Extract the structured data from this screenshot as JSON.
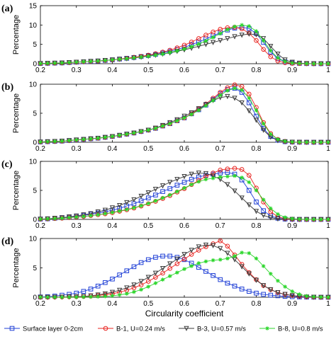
{
  "chart_data": [
    {
      "type": "line",
      "panel_label": "(a)",
      "ylabel": "Percentage",
      "xlabel": "",
      "xlim": [
        0.2,
        1.0
      ],
      "ylim": [
        0,
        15
      ],
      "xticks": [
        "0.2",
        "0.3",
        "0.4",
        "0.5",
        "0.6",
        "0.7",
        "0.8",
        "0.9",
        "1"
      ],
      "yticks": [
        "0",
        "5",
        "10",
        "15"
      ],
      "grid": false,
      "x": [
        0.2,
        0.22,
        0.24,
        0.26,
        0.28,
        0.3,
        0.32,
        0.34,
        0.36,
        0.38,
        0.4,
        0.42,
        0.44,
        0.46,
        0.48,
        0.5,
        0.52,
        0.54,
        0.56,
        0.58,
        0.6,
        0.62,
        0.64,
        0.66,
        0.68,
        0.7,
        0.72,
        0.74,
        0.76,
        0.78,
        0.8,
        0.82,
        0.84,
        0.86,
        0.88,
        0.9,
        0.92,
        0.94,
        0.96,
        0.98,
        1.0
      ],
      "series": [
        {
          "name": "Surface layer 0-2cm",
          "values": [
            0.05,
            0.1,
            0.15,
            0.2,
            0.3,
            0.4,
            0.5,
            0.6,
            0.7,
            0.85,
            1.0,
            1.2,
            1.4,
            1.6,
            1.85,
            2.1,
            2.4,
            2.8,
            3.2,
            3.7,
            4.2,
            4.9,
            5.6,
            6.4,
            7.2,
            8.0,
            8.7,
            9.2,
            9.4,
            9.1,
            7.8,
            5.5,
            3.0,
            1.3,
            0.5,
            0.2,
            0.08,
            0.03,
            0.01,
            0.0,
            0.0
          ]
        },
        {
          "name": "B-1, U=0.24 m/s",
          "values": [
            0.05,
            0.1,
            0.15,
            0.2,
            0.3,
            0.4,
            0.5,
            0.6,
            0.7,
            0.85,
            1.0,
            1.2,
            1.4,
            1.65,
            1.9,
            2.2,
            2.6,
            3.0,
            3.5,
            4.1,
            4.8,
            5.6,
            6.5,
            7.4,
            8.2,
            8.9,
            9.3,
            9.4,
            9.0,
            7.9,
            6.0,
            3.7,
            1.8,
            0.7,
            0.25,
            0.08,
            0.03,
            0.01,
            0.0,
            0.0,
            0.0
          ]
        },
        {
          "name": "B-3, U=0.57 m/s",
          "values": [
            0.05,
            0.1,
            0.15,
            0.2,
            0.3,
            0.4,
            0.5,
            0.6,
            0.7,
            0.85,
            1.0,
            1.15,
            1.3,
            1.5,
            1.7,
            1.95,
            2.2,
            2.5,
            2.8,
            3.2,
            3.6,
            4.0,
            4.5,
            5.0,
            5.5,
            6.0,
            6.5,
            7.0,
            7.4,
            7.7,
            7.5,
            6.5,
            4.5,
            2.5,
            1.0,
            0.4,
            0.15,
            0.05,
            0.02,
            0.0,
            0.0
          ]
        },
        {
          "name": "B-8, U=0.8 m/s",
          "values": [
            0.05,
            0.1,
            0.15,
            0.2,
            0.3,
            0.4,
            0.5,
            0.6,
            0.7,
            0.85,
            1.0,
            1.15,
            1.3,
            1.5,
            1.7,
            1.9,
            2.2,
            2.5,
            2.9,
            3.3,
            3.8,
            4.4,
            5.1,
            5.9,
            6.8,
            7.8,
            8.8,
            9.6,
            10.0,
            9.7,
            8.4,
            6.0,
            3.4,
            1.5,
            0.55,
            0.18,
            0.06,
            0.02,
            0.0,
            0.0,
            0.0
          ]
        }
      ]
    },
    {
      "type": "line",
      "panel_label": "(b)",
      "ylabel": "Percentage",
      "xlabel": "",
      "xlim": [
        0.2,
        1.0
      ],
      "ylim": [
        0,
        10
      ],
      "xticks": [
        "0.2",
        "0.3",
        "0.4",
        "0.5",
        "0.6",
        "0.7",
        "0.8",
        "0.9",
        "1"
      ],
      "yticks": [
        "0",
        "5",
        "10"
      ],
      "grid": false,
      "x": [
        0.2,
        0.22,
        0.24,
        0.26,
        0.28,
        0.3,
        0.32,
        0.34,
        0.36,
        0.38,
        0.4,
        0.42,
        0.44,
        0.46,
        0.48,
        0.5,
        0.52,
        0.54,
        0.56,
        0.58,
        0.6,
        0.62,
        0.64,
        0.66,
        0.68,
        0.7,
        0.72,
        0.74,
        0.76,
        0.78,
        0.8,
        0.82,
        0.84,
        0.86,
        0.88,
        0.9,
        0.92,
        0.94,
        0.96,
        0.98,
        1.0
      ],
      "series": [
        {
          "name": "Surface layer 0-2cm",
          "values": [
            0.05,
            0.1,
            0.15,
            0.2,
            0.3,
            0.4,
            0.5,
            0.6,
            0.7,
            0.85,
            1.0,
            1.2,
            1.4,
            1.6,
            1.85,
            2.1,
            2.4,
            2.8,
            3.2,
            3.7,
            4.2,
            4.9,
            5.6,
            6.4,
            7.4,
            8.4,
            9.1,
            9.3,
            8.6,
            6.8,
            4.5,
            2.4,
            1.0,
            0.35,
            0.1,
            0.03,
            0.01,
            0.0,
            0.0,
            0.0,
            0.0
          ]
        },
        {
          "name": "B-1, U=0.24 m/s",
          "values": [
            0.05,
            0.1,
            0.15,
            0.2,
            0.3,
            0.4,
            0.5,
            0.6,
            0.7,
            0.85,
            1.0,
            1.2,
            1.4,
            1.6,
            1.85,
            2.1,
            2.4,
            2.8,
            3.2,
            3.7,
            4.2,
            4.9,
            5.7,
            6.6,
            7.6,
            8.6,
            9.4,
            9.9,
            9.6,
            8.3,
            6.0,
            3.4,
            1.5,
            0.5,
            0.15,
            0.04,
            0.01,
            0.0,
            0.0,
            0.0,
            0.0
          ]
        },
        {
          "name": "B-3, U=0.57 m/s",
          "values": [
            0.05,
            0.1,
            0.15,
            0.2,
            0.3,
            0.4,
            0.5,
            0.6,
            0.7,
            0.85,
            1.0,
            1.2,
            1.4,
            1.6,
            1.85,
            2.1,
            2.45,
            2.9,
            3.4,
            3.9,
            4.5,
            5.1,
            5.8,
            6.5,
            7.2,
            7.7,
            7.9,
            7.6,
            6.8,
            5.4,
            3.8,
            2.1,
            0.9,
            0.3,
            0.1,
            0.03,
            0.01,
            0.0,
            0.0,
            0.0,
            0.0
          ]
        },
        {
          "name": "B-8, U=0.8 m/s",
          "values": [
            0.05,
            0.1,
            0.15,
            0.2,
            0.3,
            0.4,
            0.5,
            0.6,
            0.7,
            0.85,
            1.0,
            1.2,
            1.4,
            1.6,
            1.85,
            2.1,
            2.4,
            2.8,
            3.2,
            3.7,
            4.2,
            4.8,
            5.5,
            6.3,
            7.2,
            8.1,
            8.9,
            9.3,
            9.0,
            7.6,
            5.5,
            3.2,
            1.4,
            0.5,
            0.15,
            0.04,
            0.01,
            0.0,
            0.0,
            0.0,
            0.0
          ]
        }
      ]
    },
    {
      "type": "line",
      "panel_label": "(c)",
      "ylabel": "Percentage",
      "xlabel": "",
      "xlim": [
        0.2,
        1.0
      ],
      "ylim": [
        0,
        10
      ],
      "xticks": [
        "0.2",
        "0.3",
        "0.4",
        "0.5",
        "0.6",
        "0.7",
        "0.8",
        "0.9",
        "1"
      ],
      "yticks": [
        "0",
        "5",
        "10"
      ],
      "grid": false,
      "x": [
        0.2,
        0.22,
        0.24,
        0.26,
        0.28,
        0.3,
        0.32,
        0.34,
        0.36,
        0.38,
        0.4,
        0.42,
        0.44,
        0.46,
        0.48,
        0.5,
        0.52,
        0.54,
        0.56,
        0.58,
        0.6,
        0.62,
        0.64,
        0.66,
        0.68,
        0.7,
        0.72,
        0.74,
        0.76,
        0.78,
        0.8,
        0.82,
        0.84,
        0.86,
        0.88,
        0.9,
        0.92,
        0.94,
        0.96,
        0.98,
        1.0
      ],
      "series": [
        {
          "name": "Surface layer 0-2cm",
          "values": [
            0.05,
            0.1,
            0.2,
            0.3,
            0.4,
            0.55,
            0.7,
            0.9,
            1.1,
            1.3,
            1.6,
            1.9,
            2.3,
            2.7,
            3.2,
            3.7,
            4.2,
            4.8,
            5.3,
            5.9,
            6.4,
            6.9,
            7.3,
            7.6,
            7.8,
            8.0,
            8.1,
            7.8,
            6.8,
            5.0,
            3.0,
            1.5,
            0.6,
            0.2,
            0.06,
            0.02,
            0.0,
            0.0,
            0.0,
            0.0,
            0.0
          ]
        },
        {
          "name": "B-1, U=0.24 m/s",
          "values": [
            0.05,
            0.1,
            0.15,
            0.2,
            0.3,
            0.4,
            0.5,
            0.65,
            0.8,
            0.95,
            1.15,
            1.4,
            1.65,
            1.95,
            2.3,
            2.7,
            3.1,
            3.6,
            4.1,
            4.7,
            5.3,
            6.0,
            6.7,
            7.4,
            8.0,
            8.5,
            8.7,
            8.8,
            8.6,
            7.6,
            5.4,
            3.0,
            1.3,
            0.45,
            0.13,
            0.04,
            0.01,
            0.0,
            0.0,
            0.0,
            0.0
          ]
        },
        {
          "name": "B-3, U=0.57 m/s",
          "values": [
            0.05,
            0.1,
            0.2,
            0.3,
            0.45,
            0.6,
            0.8,
            1.0,
            1.3,
            1.6,
            2.0,
            2.4,
            2.9,
            3.4,
            4.0,
            4.6,
            5.2,
            5.8,
            6.4,
            6.9,
            7.4,
            7.8,
            8.0,
            7.9,
            7.5,
            6.9,
            6.0,
            4.9,
            3.7,
            2.5,
            1.4,
            0.7,
            0.3,
            0.1,
            0.03,
            0.01,
            0.0,
            0.0,
            0.0,
            0.0,
            0.0
          ]
        },
        {
          "name": "B-8, U=0.8 m/s",
          "values": [
            0.05,
            0.1,
            0.15,
            0.2,
            0.3,
            0.4,
            0.5,
            0.65,
            0.8,
            1.0,
            1.2,
            1.45,
            1.7,
            2.0,
            2.35,
            2.75,
            3.2,
            3.7,
            4.2,
            4.8,
            5.4,
            6.0,
            6.5,
            6.9,
            7.1,
            7.3,
            7.4,
            7.5,
            7.2,
            6.4,
            5.0,
            3.4,
            1.9,
            0.9,
            0.35,
            0.12,
            0.04,
            0.01,
            0.0,
            0.0,
            0.0
          ]
        }
      ]
    },
    {
      "type": "line",
      "panel_label": "(d)",
      "ylabel": "Percentage",
      "xlabel": "Circularity coefficient",
      "xlim": [
        0.2,
        1.0
      ],
      "ylim": [
        0,
        10
      ],
      "xticks": [
        "0.2",
        "0.3",
        "0.4",
        "0.5",
        "0.6",
        "0.7",
        "0.8",
        "0.9",
        "1"
      ],
      "yticks": [
        "0",
        "5",
        "10"
      ],
      "grid": false,
      "x": [
        0.2,
        0.22,
        0.24,
        0.26,
        0.28,
        0.3,
        0.32,
        0.34,
        0.36,
        0.38,
        0.4,
        0.42,
        0.44,
        0.46,
        0.48,
        0.5,
        0.52,
        0.54,
        0.56,
        0.58,
        0.6,
        0.62,
        0.64,
        0.66,
        0.68,
        0.7,
        0.72,
        0.74,
        0.76,
        0.78,
        0.8,
        0.82,
        0.84,
        0.86,
        0.88,
        0.9,
        0.92,
        0.94,
        0.96,
        0.98,
        1.0
      ],
      "series": [
        {
          "name": "Surface layer 0-2cm",
          "values": [
            0.05,
            0.1,
            0.2,
            0.35,
            0.5,
            0.7,
            1.0,
            1.4,
            1.9,
            2.5,
            3.1,
            3.8,
            4.5,
            5.2,
            5.9,
            6.4,
            6.8,
            7.0,
            7.0,
            6.8,
            6.4,
            5.8,
            5.1,
            4.4,
            3.7,
            3.0,
            2.4,
            1.9,
            1.4,
            1.0,
            0.7,
            0.5,
            0.35,
            0.25,
            0.15,
            0.1,
            0.05,
            0.02,
            0.01,
            0.0,
            0.0
          ]
        },
        {
          "name": "B-1, U=0.24 m/s",
          "values": [
            0.0,
            0.0,
            0.02,
            0.04,
            0.07,
            0.1,
            0.15,
            0.2,
            0.3,
            0.45,
            0.6,
            0.85,
            1.2,
            1.6,
            2.1,
            2.7,
            3.4,
            4.1,
            4.9,
            5.7,
            6.5,
            7.3,
            8.0,
            8.6,
            9.1,
            9.6,
            8.7,
            7.2,
            5.6,
            4.2,
            3.0,
            2.0,
            1.3,
            0.8,
            0.5,
            0.3,
            0.15,
            0.07,
            0.03,
            0.0,
            0.0
          ]
        },
        {
          "name": "B-3, U=0.57 m/s",
          "values": [
            0.0,
            0.01,
            0.02,
            0.04,
            0.07,
            0.1,
            0.15,
            0.25,
            0.4,
            0.6,
            0.85,
            1.2,
            1.6,
            2.1,
            2.7,
            3.4,
            4.1,
            4.9,
            5.7,
            6.5,
            7.3,
            8.0,
            8.6,
            8.9,
            8.8,
            8.3,
            7.5,
            6.4,
            5.2,
            4.0,
            2.9,
            2.0,
            1.3,
            0.8,
            0.5,
            0.3,
            0.15,
            0.06,
            0.02,
            0.0,
            0.0
          ]
        },
        {
          "name": "B-8, U=0.8 m/s",
          "values": [
            0.0,
            0.0,
            0.0,
            0.0,
            0.01,
            0.02,
            0.04,
            0.07,
            0.1,
            0.15,
            0.25,
            0.4,
            0.6,
            0.9,
            1.3,
            1.8,
            2.4,
            3.0,
            3.6,
            4.2,
            4.8,
            5.3,
            5.8,
            6.1,
            6.3,
            6.4,
            6.6,
            7.0,
            7.6,
            7.5,
            6.6,
            5.3,
            4.0,
            2.8,
            1.8,
            1.0,
            0.5,
            0.2,
            0.07,
            0.02,
            0.0
          ]
        }
      ]
    }
  ],
  "legend": {
    "placement": "bottom",
    "entries": [
      {
        "label": "Surface layer 0-2cm",
        "color": "#1f3fd6",
        "marker": "square"
      },
      {
        "label": "B-1, U=0.24 m/s",
        "color": "#e8231f",
        "marker": "circle"
      },
      {
        "label": "B-3, U=0.57 m/s",
        "color": "#3a3a3a",
        "marker": "triangle-down"
      },
      {
        "label": "B-8, U=0.8 m/s",
        "color": "#2bd62b",
        "marker": "asterisk"
      }
    ]
  }
}
